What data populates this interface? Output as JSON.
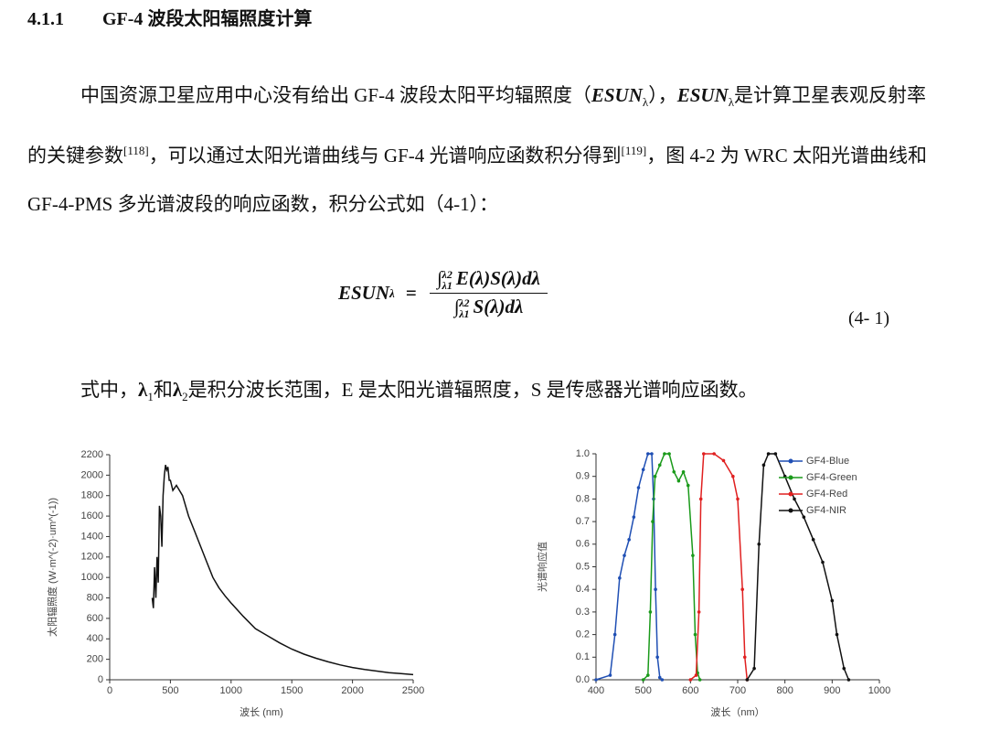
{
  "section": {
    "number": "4.1.1",
    "title": "GF-4 波段太阳辐照度计算"
  },
  "paragraphs": [
    {
      "runs": [
        {
          "text": "中国资源卫星应用中心没有给出 GF-4 波段太阳平均辐照度（",
          "kind": "plain"
        },
        {
          "text": "ESUN",
          "kind": "math"
        },
        {
          "text": "λ",
          "kind": "sub"
        },
        {
          "text": "），",
          "kind": "plain"
        },
        {
          "text": "ESUN",
          "kind": "math"
        },
        {
          "text": "λ",
          "kind": "sub"
        },
        {
          "text": "是计算卫星表观反射率的关键参数",
          "kind": "plain"
        },
        {
          "text": "[118]",
          "kind": "sup"
        },
        {
          "text": "，可以通过太阳光谱曲线与 GF-4 光谱响应函数积分得到",
          "kind": "plain"
        },
        {
          "text": "[119]",
          "kind": "sup"
        },
        {
          "text": "，图 4-2 为 WRC 太阳光谱曲线和 GF-4-PMS 多光谱波段的响应函数，积分公式如（4-1）：",
          "kind": "plain"
        }
      ]
    },
    {
      "runs": [
        {
          "text": "式中，",
          "kind": "plain"
        },
        {
          "text": "λ",
          "kind": "bold"
        },
        {
          "text": "1",
          "kind": "sub"
        },
        {
          "text": "和",
          "kind": "plain"
        },
        {
          "text": "λ",
          "kind": "bold"
        },
        {
          "text": "2",
          "kind": "sub"
        },
        {
          "text": "是积分波长范围，E 是太阳光谱辐照度，S 是传感器光谱响应函数。",
          "kind": "plain"
        }
      ]
    }
  ],
  "equation": {
    "lhs": "ESUN",
    "lhs_sub": "λ",
    "equals": "=",
    "upper_limit": "λ2",
    "lower_limit": "λ1",
    "numerator": "E(λ)S(λ)dλ",
    "denominator": "S(λ)dλ",
    "number": "(4- 1)"
  },
  "chart_data": [
    {
      "type": "line",
      "xlabel": "波长 (nm)",
      "ylabel": "太阳辐照度 (W·m^(-2)·um^(-1))",
      "color": "#111111",
      "grid": false,
      "xlim": [
        0,
        2500
      ],
      "xticks": [
        0,
        500,
        1000,
        1500,
        2000,
        2500
      ],
      "ylim": [
        0,
        2200
      ],
      "yticks": [
        0,
        200,
        400,
        600,
        800,
        1000,
        1200,
        1400,
        1600,
        1800,
        2000,
        2200
      ],
      "x": [
        350,
        360,
        370,
        380,
        390,
        400,
        410,
        420,
        430,
        440,
        450,
        460,
        470,
        480,
        490,
        500,
        520,
        550,
        600,
        650,
        700,
        750,
        800,
        850,
        900,
        950,
        1000,
        1100,
        1200,
        1300,
        1400,
        1500,
        1600,
        1700,
        1800,
        1900,
        2000,
        2100,
        2200,
        2300,
        2400,
        2500
      ],
      "values": [
        800,
        700,
        1100,
        800,
        1200,
        950,
        1700,
        1600,
        1300,
        1800,
        2000,
        2100,
        2050,
        2080,
        1950,
        1950,
        1850,
        1900,
        1800,
        1600,
        1450,
        1300,
        1150,
        1000,
        900,
        820,
        750,
        620,
        500,
        430,
        360,
        300,
        250,
        210,
        175,
        145,
        120,
        100,
        85,
        70,
        60,
        50
      ]
    },
    {
      "type": "line",
      "xlabel": "波长（nm）",
      "ylabel": "光谱响应值",
      "grid": false,
      "legend": "upper right",
      "xlim": [
        400,
        1000
      ],
      "xticks": [
        400,
        500,
        600,
        700,
        800,
        900,
        1000
      ],
      "ylim": [
        0,
        1
      ],
      "yticks": [
        {
          "value": 0,
          "label": "0.0"
        },
        0.1,
        0.2,
        0.3,
        0.4,
        0.5,
        0.6,
        0.7,
        0.8,
        0.9,
        {
          "value": 1,
          "label": "1.0"
        }
      ],
      "series": [
        {
          "name": "GF4-Blue",
          "color": "#1f4fb4",
          "x": [
            400,
            430,
            440,
            450,
            460,
            470,
            480,
            490,
            500,
            510,
            518,
            522,
            526,
            530,
            535,
            540
          ],
          "values": [
            0,
            0.02,
            0.2,
            0.45,
            0.55,
            0.62,
            0.72,
            0.85,
            0.93,
            1.0,
            1.0,
            0.8,
            0.4,
            0.1,
            0.01,
            0
          ]
        },
        {
          "name": "GF4-Green",
          "color": "#1a9a1a",
          "x": [
            500,
            510,
            515,
            520,
            525,
            535,
            545,
            555,
            565,
            575,
            585,
            595,
            605,
            610,
            615,
            620
          ],
          "values": [
            0,
            0.02,
            0.3,
            0.7,
            0.9,
            0.95,
            1.0,
            1.0,
            0.92,
            0.88,
            0.92,
            0.86,
            0.55,
            0.2,
            0.03,
            0
          ]
        },
        {
          "name": "GF4-Red",
          "color": "#e02020",
          "x": [
            600,
            612,
            618,
            622,
            628,
            650,
            670,
            690,
            700,
            710,
            715,
            720
          ],
          "values": [
            0,
            0.02,
            0.3,
            0.8,
            1.0,
            1.0,
            0.97,
            0.9,
            0.8,
            0.4,
            0.1,
            0
          ]
        },
        {
          "name": "GF4-NIR",
          "color": "#111111",
          "x": [
            720,
            735,
            745,
            755,
            765,
            780,
            800,
            820,
            840,
            860,
            880,
            900,
            910,
            925,
            935
          ],
          "values": [
            0,
            0.05,
            0.6,
            0.95,
            1.0,
            1.0,
            0.9,
            0.8,
            0.72,
            0.62,
            0.52,
            0.35,
            0.2,
            0.05,
            0
          ]
        }
      ]
    }
  ]
}
